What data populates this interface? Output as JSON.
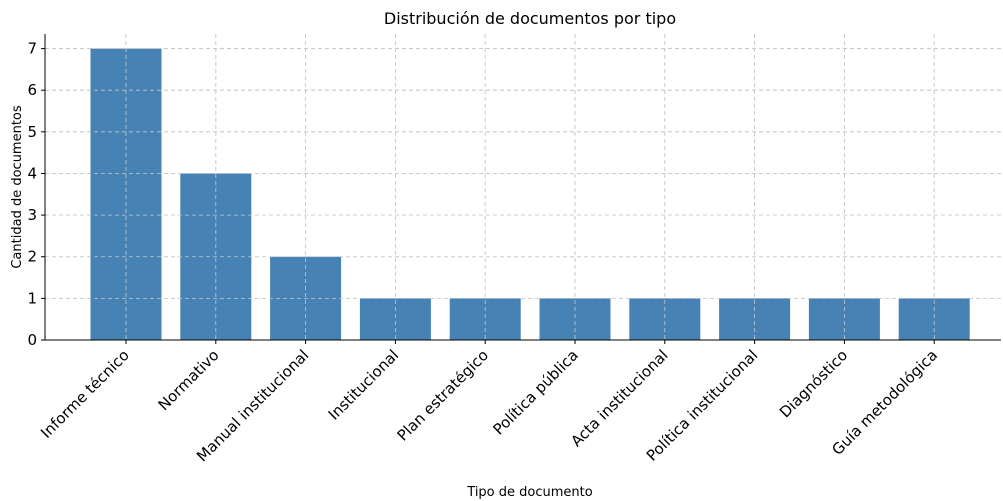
{
  "chart_data": {
    "type": "bar",
    "title": "Distribución de documentos por tipo",
    "xlabel": "Tipo de documento",
    "ylabel": "Cantidad de documentos",
    "categories": [
      "Informe técnico",
      "Normativo",
      "Manual institucional",
      "Institucional",
      "Plan estratégico",
      "Política pública",
      "Acta institucional",
      "Política institucional",
      "Diagnóstico",
      "Guía metodológica"
    ],
    "values": [
      7,
      4,
      2,
      1,
      1,
      1,
      1,
      1,
      1,
      1
    ],
    "ylim": [
      0,
      7.35
    ],
    "yticks": [
      0,
      1,
      2,
      3,
      4,
      5,
      6,
      7
    ],
    "grid": true,
    "bar_color": "#4682b4",
    "legend": false
  }
}
